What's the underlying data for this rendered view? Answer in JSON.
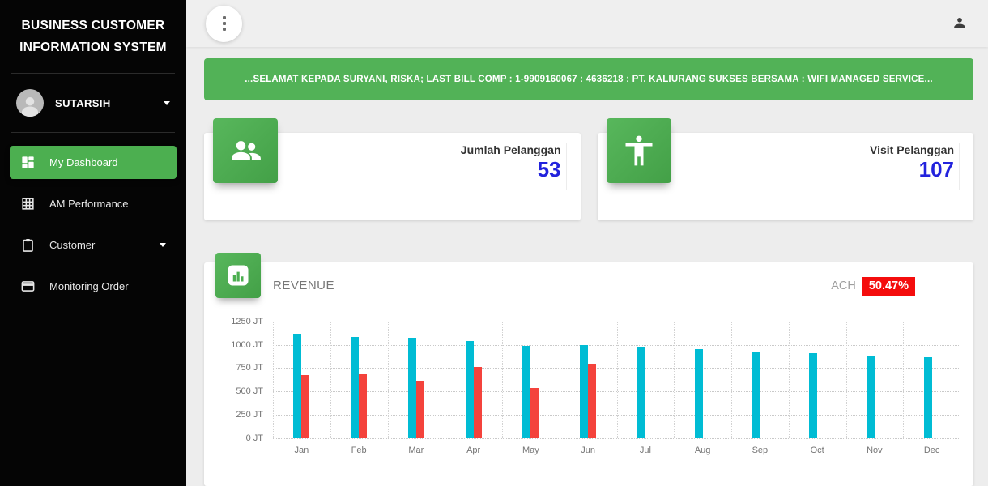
{
  "app": {
    "brand_line1": "BUSINESS CUSTOMER",
    "brand_line2": "INFORMATION SYSTEM"
  },
  "topbar": {
    "more_options_icon": "kebab-menu-icon",
    "account_icon": "person-icon"
  },
  "sidebar": {
    "user": {
      "name": "SUTARSIH",
      "has_dropdown": true
    },
    "menu": [
      {
        "label": "My Dashboard",
        "icon": "dashboard-icon",
        "active": true
      },
      {
        "label": "AM Performance",
        "icon": "grid-icon",
        "active": false
      },
      {
        "label": "Customer",
        "icon": "clipboard-icon",
        "active": false,
        "has_dropdown": true
      },
      {
        "label": "Monitoring Order",
        "icon": "window-icon",
        "active": false
      }
    ]
  },
  "banner": {
    "text": "...SELAMAT KEPADA SURYANI, RISKA; LAST BILL COMP : 1-9909160067 : 4636218 : PT. KALIURANG SUKSES BERSAMA : WIFI MANAGED SERVICE...",
    "background": "#52b257"
  },
  "stats": [
    {
      "label": "Jumlah Pelanggan",
      "value": "53",
      "icon": "people-group-icon"
    },
    {
      "label": "Visit Pelanggan",
      "value": "107",
      "icon": "accessibility-person-icon"
    }
  ],
  "revenue": {
    "title": "REVENUE",
    "icon": "bar-chart-icon",
    "ach_label": "ACH",
    "ach_value": "50.47%",
    "ach_badge_color": "#f40d0d"
  },
  "colors": {
    "accent_green": "#4caf50",
    "banner_green": "#52b257",
    "value_blue": "#2222dd",
    "bar_cyan": "#00bcd4",
    "bar_red": "#f4433c",
    "badge_red": "#f40d0d",
    "sidebar_black": "#050505",
    "page_gray": "#ededed"
  },
  "chart_data": {
    "type": "bar",
    "title": "REVENUE",
    "categories": [
      "Jan",
      "Feb",
      "Mar",
      "Apr",
      "May",
      "Jun",
      "Jul",
      "Aug",
      "Sep",
      "Oct",
      "Nov",
      "Dec"
    ],
    "series": [
      {
        "name": "series-cyan",
        "color": "#00bcd4",
        "values": [
          1120,
          1085,
          1070,
          1035,
          985,
          995,
          970,
          950,
          925,
          910,
          885,
          865
        ]
      },
      {
        "name": "series-red",
        "color": "#f4433c",
        "values": [
          675,
          685,
          610,
          765,
          540,
          785,
          null,
          null,
          null,
          null,
          null,
          null
        ]
      }
    ],
    "ylim": [
      0,
      1250
    ],
    "yticks": [
      {
        "value": 0,
        "label": "0 JT"
      },
      {
        "value": 250,
        "label": "250 JT"
      },
      {
        "value": 500,
        "label": "500 JT"
      },
      {
        "value": 750,
        "label": "750 JT"
      },
      {
        "value": 1000,
        "label": "1000 JT"
      },
      {
        "value": 1250,
        "label": "1250 JT"
      }
    ],
    "grid": "dotted",
    "legend": "none",
    "xlabel": "",
    "ylabel": ""
  }
}
